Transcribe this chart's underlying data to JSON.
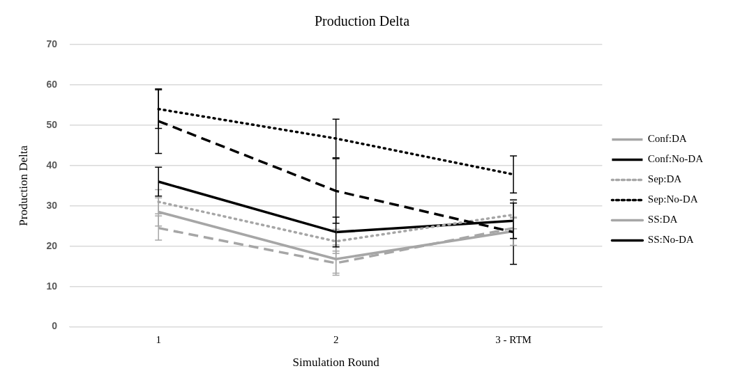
{
  "chart_data": {
    "type": "line",
    "title": "Production Delta",
    "xlabel": "Simulation Round",
    "ylabel": "Production Delta",
    "categories": [
      "1",
      "2",
      "3 - RTM"
    ],
    "series": [
      {
        "name": "Conf:DA",
        "color": "#a6a6a6",
        "line_style": "dashed",
        "values": [
          24.5,
          15.8,
          24.5
        ],
        "errors": [
          3,
          3,
          2.5
        ]
      },
      {
        "name": "Conf:No-DA",
        "color": "#000000",
        "line_style": "dashed",
        "values": [
          51,
          33.7,
          23.5
        ],
        "errors": [
          8,
          8,
          8
        ]
      },
      {
        "name": "Sep:DA",
        "color": "#a6a6a6",
        "line_style": "dotted",
        "values": [
          31,
          21.2,
          27.8
        ],
        "errors": [
          3,
          3,
          3.5
        ]
      },
      {
        "name": "Sep:No-DA",
        "color": "#000000",
        "line_style": "dotted",
        "values": [
          54,
          46.7,
          37.8
        ],
        "errors": [
          4.8,
          4.8,
          4.6
        ]
      },
      {
        "name": "SS:DA",
        "color": "#a6a6a6",
        "line_style": "solid",
        "values": [
          28.5,
          16.8,
          23.7
        ],
        "errors": [
          3.5,
          3.5,
          3.5
        ]
      },
      {
        "name": "SS:No-DA",
        "color": "#000000",
        "line_style": "solid",
        "values": [
          36,
          23.5,
          26.3
        ],
        "errors": [
          3.6,
          3.7,
          4.4
        ]
      }
    ],
    "ylim": [
      0,
      70
    ],
    "yticks": [
      0,
      10,
      20,
      30,
      40,
      50,
      60,
      70
    ],
    "grid": "y",
    "legend": "right",
    "marker": "none"
  }
}
